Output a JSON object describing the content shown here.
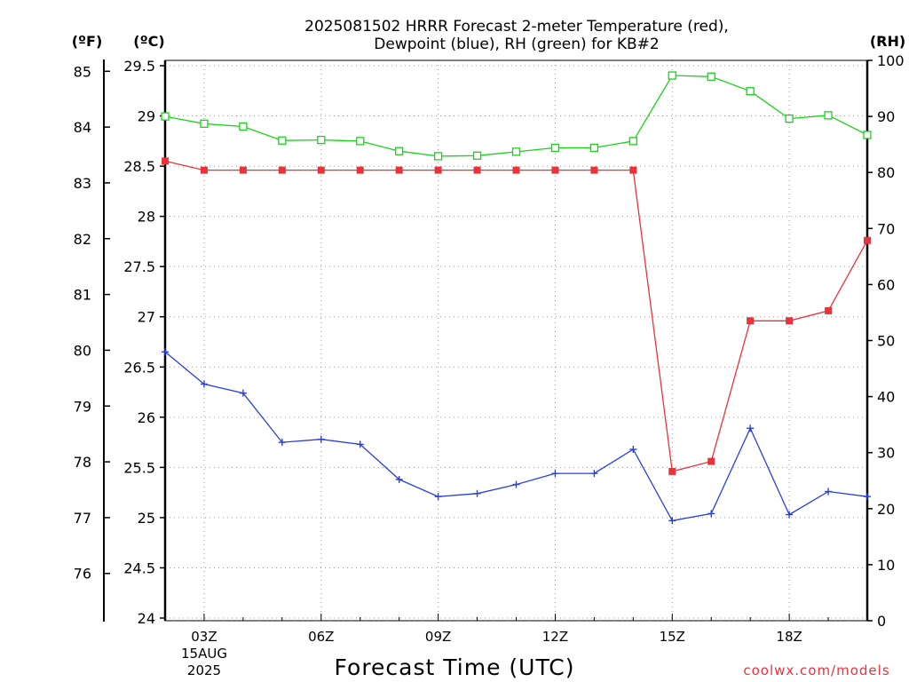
{
  "title_line1": "2025081502 HRRR Forecast 2-meter Temperature (red),",
  "title_line2": "Dewpoint (blue), RH (green) for KB#2",
  "units": {
    "f": "(ºF)",
    "c": "(ºC)",
    "rh": "(RH)"
  },
  "xlabel": "Forecast Time (UTC)",
  "credit": "coolwx.com/models",
  "date_line1": "15AUG",
  "date_line2": "2025",
  "colors": {
    "temperature": "#e8323c",
    "dewpoint": "#2b3ee0",
    "rh": "#18d418"
  },
  "chart_data": {
    "type": "line",
    "x": [
      "02Z",
      "03Z",
      "04Z",
      "05Z",
      "06Z",
      "07Z",
      "08Z",
      "09Z",
      "10Z",
      "11Z",
      "12Z",
      "13Z",
      "14Z",
      "15Z",
      "16Z",
      "17Z",
      "18Z",
      "19Z",
      "20Z"
    ],
    "xtick_labels": [
      "03Z",
      "06Z",
      "09Z",
      "12Z",
      "15Z",
      "18Z"
    ],
    "series": [
      {
        "name": "Temperature",
        "axis": "C",
        "marker": "filled-square",
        "color": "#e8323c",
        "values": [
          28.55,
          28.46,
          28.46,
          28.46,
          28.46,
          28.46,
          28.46,
          28.46,
          28.46,
          28.46,
          28.46,
          28.46,
          28.46,
          25.46,
          25.56,
          26.96,
          26.96,
          27.06,
          27.76
        ]
      },
      {
        "name": "Dewpoint",
        "axis": "C",
        "marker": "plus",
        "color": "#2b3ee0",
        "values": [
          26.65,
          26.33,
          26.24,
          25.75,
          25.78,
          25.73,
          25.38,
          25.21,
          25.24,
          25.33,
          25.44,
          25.44,
          25.68,
          24.97,
          25.04,
          25.89,
          25.03,
          25.26,
          25.21
        ]
      },
      {
        "name": "RH",
        "axis": "RH",
        "marker": "open-square",
        "color": "#18d418",
        "values": [
          90.0,
          88.7,
          88.2,
          85.7,
          85.8,
          85.6,
          83.8,
          82.9,
          83.0,
          83.7,
          84.4,
          84.4,
          85.6,
          97.3,
          97.1,
          94.5,
          89.6,
          90.2,
          86.7
        ]
      }
    ],
    "y_left_c": {
      "ticks": [
        24,
        24.5,
        25,
        25.5,
        26,
        26.5,
        27,
        27.5,
        28,
        28.5,
        29,
        29.5
      ],
      "range": [
        24,
        29.6
      ]
    },
    "y_left_f": {
      "ticks": [
        76,
        77,
        78,
        79,
        80,
        81,
        82,
        83,
        84,
        85
      ]
    },
    "y_right_rh": {
      "ticks": [
        0,
        10,
        20,
        30,
        40,
        50,
        60,
        70,
        80,
        90,
        100
      ],
      "range": [
        0,
        100
      ]
    },
    "grid": true
  }
}
